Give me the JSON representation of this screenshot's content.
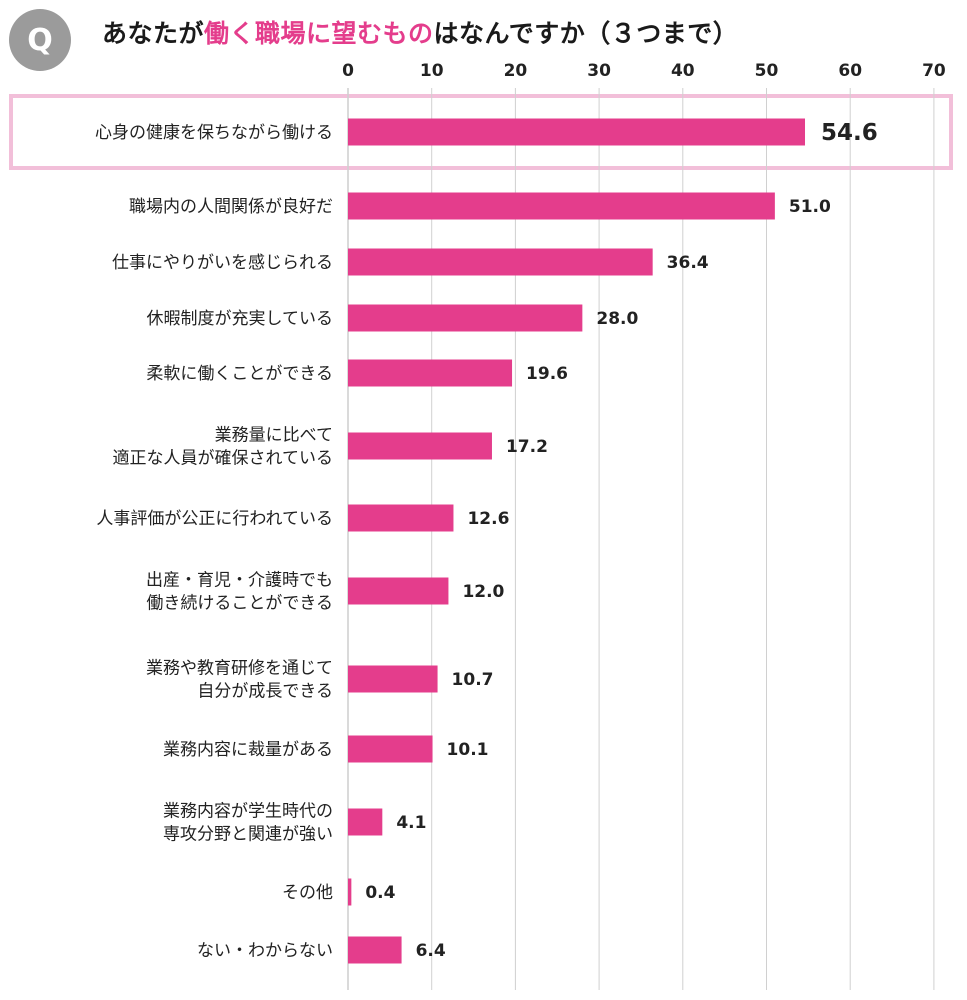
{
  "badge": "Q",
  "title": {
    "prefix": "あなたが",
    "highlight": "働く職場に望むもの",
    "suffix": "はなんですか（３つまで）"
  },
  "colors": {
    "bar": "#e43d8c",
    "accent": "#e43d8c",
    "highlight_border": "#f2bfd9",
    "grid": "#d0d0d0",
    "badge": "#9b9b9b"
  },
  "chart_data": {
    "type": "bar",
    "orientation": "horizontal",
    "xlim": [
      0,
      70
    ],
    "ticks": [
      0,
      10,
      20,
      30,
      40,
      50,
      60,
      70
    ],
    "tick_labels": [
      "0",
      "10",
      "20",
      "30",
      "40",
      "50",
      "60",
      "70"
    ],
    "axis_position": "top",
    "grid": true,
    "highlighted_index": 0,
    "categories": [
      [
        "心身の健康を保ちながら働ける"
      ],
      [
        "職場内の人間関係が良好だ"
      ],
      [
        "仕事にやりがいを感じられる"
      ],
      [
        "休暇制度が充実している"
      ],
      [
        "柔軟に働くことができる"
      ],
      [
        "業務量に比べて",
        "適正な人員が確保されている"
      ],
      [
        "人事評価が公正に行われている"
      ],
      [
        "出産・育児・介護時でも",
        "働き続けることができる"
      ],
      [
        "業務や教育研修を通じて",
        "自分が成長できる"
      ],
      [
        "業務内容に裁量がある"
      ],
      [
        "業務内容が学生時代の",
        "専攻分野と関連が強い"
      ],
      [
        "その他"
      ],
      [
        "ない・わからない"
      ]
    ],
    "values": [
      54.6,
      51.0,
      36.4,
      28.0,
      19.6,
      17.2,
      12.6,
      12.0,
      10.7,
      10.1,
      4.1,
      0.4,
      6.4
    ],
    "value_labels": [
      "54.6",
      "51.0",
      "36.4",
      "28.0",
      "19.6",
      "17.2",
      "12.6",
      "12.0",
      "10.7",
      "10.1",
      "4.1",
      "0.4",
      "6.4"
    ]
  }
}
